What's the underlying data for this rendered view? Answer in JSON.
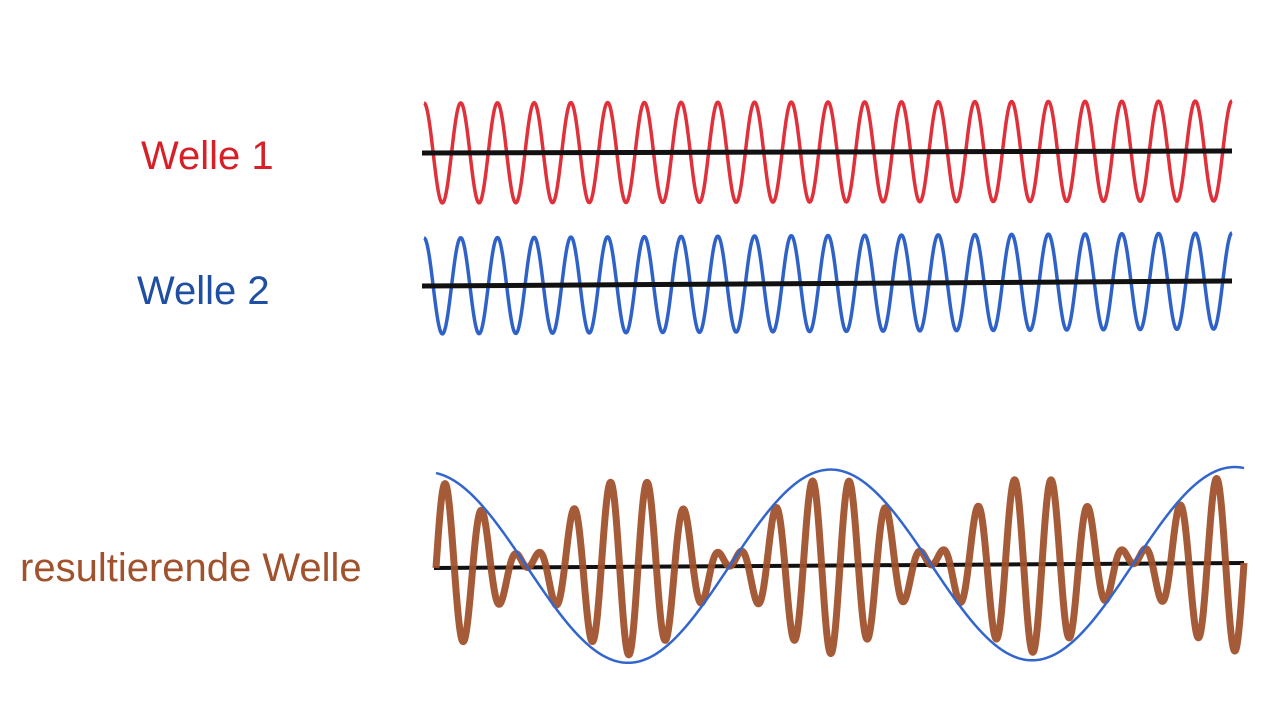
{
  "labels": {
    "wave1": "Welle 1",
    "wave2": "Welle 2",
    "result": "resultierende Welle"
  },
  "colors": {
    "wave1": "#e0303a",
    "wave2": "#2f62c8",
    "result": "#a0522d",
    "envelope": "#3366cc",
    "axis": "#111111",
    "label_wave1": "#d61f26",
    "label_wave2": "#1f4fa3",
    "label_result": "#a0522d"
  },
  "waves": {
    "wave1": {
      "cycles": 22
    },
    "wave2": {
      "cycles": 22
    },
    "result": {
      "cycles": 22,
      "beat_cycles": 2
    }
  }
}
